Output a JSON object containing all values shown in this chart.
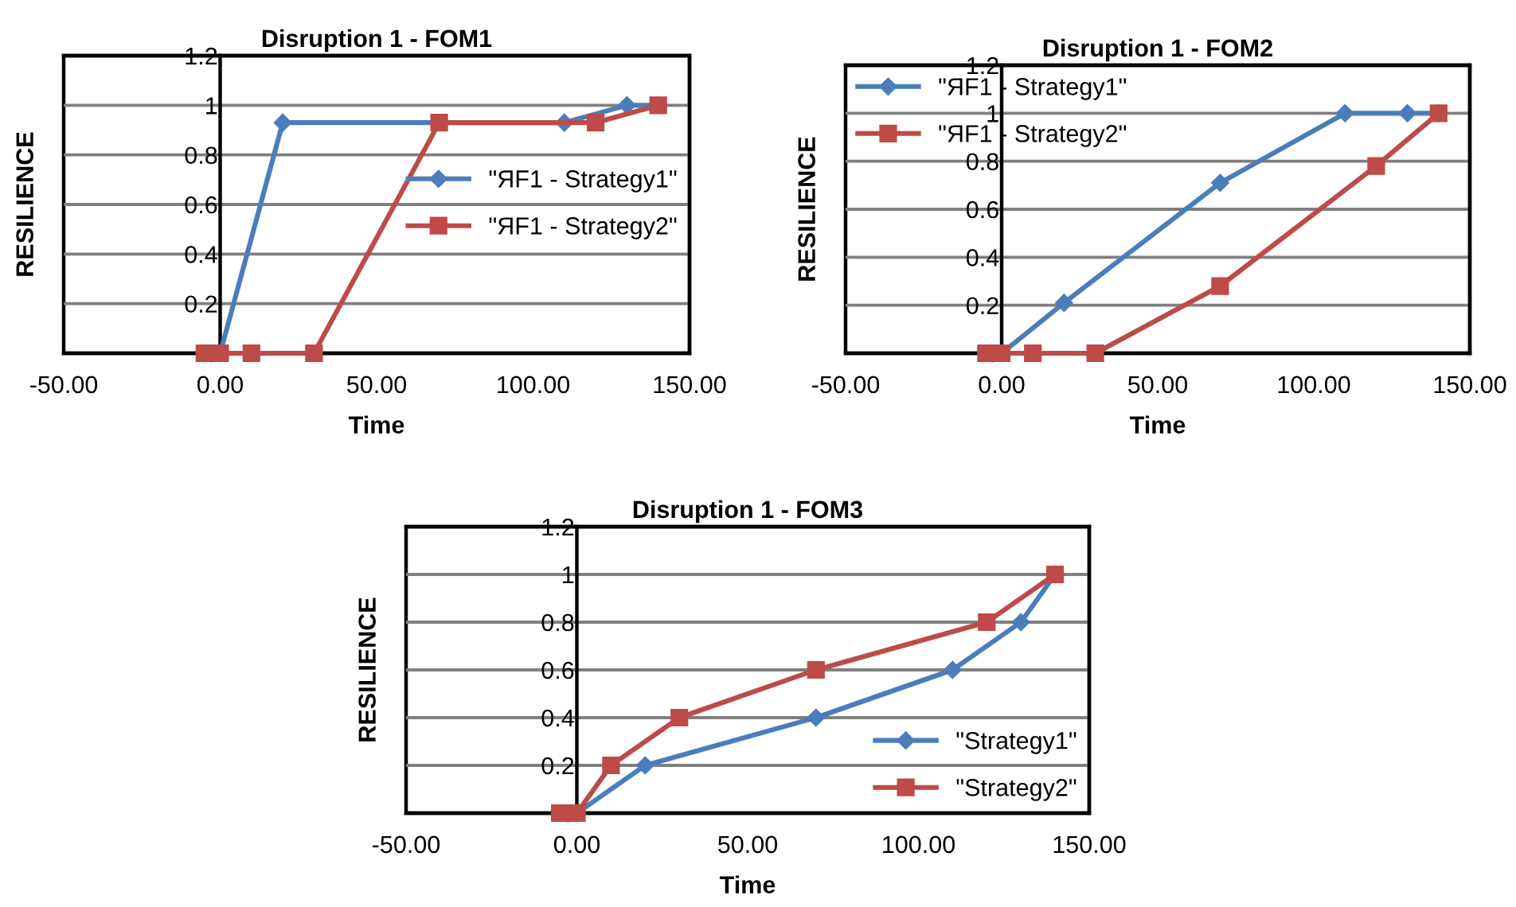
{
  "chart_data": [
    {
      "type": "line",
      "title": "Disruption 1 - FOM1",
      "xlabel": "Time",
      "ylabel": "RESILIENCE",
      "xlim": [
        -50,
        150
      ],
      "xticks": [
        {
          "value": -50,
          "label": "-50.00"
        },
        {
          "value": 0,
          "label": "0.00"
        },
        {
          "value": 50,
          "label": "50.00"
        },
        {
          "value": 100,
          "label": "100.00"
        },
        {
          "value": 150,
          "label": "150.00"
        }
      ],
      "ylim": [
        0,
        1.2
      ],
      "yticks": [
        0,
        0.2,
        0.4,
        0.6,
        0.8,
        1,
        1.2
      ],
      "grid": "y",
      "legend": "right",
      "series": [
        {
          "name": "\"ЯF1 - Strategy1\"",
          "color": "#4a7ebb",
          "marker": "diamond",
          "x": [
            -5,
            0,
            20,
            110,
            130,
            140
          ],
          "values": [
            0,
            0,
            0.93,
            0.93,
            1,
            1
          ]
        },
        {
          "name": "\"ЯF1 - Strategy2\"",
          "color": "#be4b48",
          "marker": "square",
          "x": [
            -5,
            0,
            10,
            30,
            70,
            120,
            140
          ],
          "values": [
            0,
            0,
            0,
            0,
            0.93,
            0.93,
            1
          ]
        }
      ]
    },
    {
      "type": "line",
      "title": "Disruption 1 - FOM2",
      "xlabel": "Time",
      "ylabel": "RESILIENCE",
      "xlim": [
        -50,
        150
      ],
      "xticks": [
        {
          "value": -50,
          "label": "-50.00"
        },
        {
          "value": 0,
          "label": "0.00"
        },
        {
          "value": 50,
          "label": "50.00"
        },
        {
          "value": 100,
          "label": "100.00"
        },
        {
          "value": 150,
          "label": "150.00"
        }
      ],
      "ylim": [
        0,
        1.2
      ],
      "yticks": [
        0,
        0.2,
        0.4,
        0.6,
        0.8,
        1,
        1.2
      ],
      "grid": "y",
      "legend": "top left",
      "series": [
        {
          "name": "\"ЯF1 - Strategy1\"",
          "color": "#4a7ebb",
          "marker": "diamond",
          "x": [
            0,
            20,
            70,
            110,
            130,
            140
          ],
          "values": [
            0,
            0.21,
            0.71,
            1,
            1,
            1
          ]
        },
        {
          "name": "\"ЯF1 - Strategy2\"",
          "color": "#be4b48",
          "marker": "square",
          "x": [
            -5,
            0,
            10,
            30,
            70,
            120,
            140
          ],
          "values": [
            0,
            0,
            0,
            0,
            0.28,
            0.78,
            1
          ]
        }
      ]
    },
    {
      "type": "line",
      "title": "Disruption 1 - FOM3",
      "xlabel": "Time",
      "ylabel": "RESILIENCE",
      "xlim": [
        -50,
        150
      ],
      "xticks": [
        {
          "value": -50,
          "label": "-50.00"
        },
        {
          "value": 0,
          "label": "0.00"
        },
        {
          "value": 50,
          "label": "50.00"
        },
        {
          "value": 100,
          "label": "100.00"
        },
        {
          "value": 150,
          "label": "150.00"
        }
      ],
      "ylim": [
        0,
        1.2
      ],
      "yticks": [
        0,
        0.2,
        0.4,
        0.6,
        0.8,
        1,
        1.2
      ],
      "grid": "y",
      "legend": "bottom right",
      "series": [
        {
          "name": "\"Strategy1\"",
          "color": "#4a7ebb",
          "marker": "diamond",
          "x": [
            0,
            20,
            70,
            110,
            130,
            140
          ],
          "values": [
            0,
            0.2,
            0.4,
            0.6,
            0.8,
            1
          ]
        },
        {
          "name": "\"Strategy2\"",
          "color": "#be4b48",
          "marker": "square",
          "x": [
            -5,
            0,
            10,
            30,
            70,
            120,
            140
          ],
          "values": [
            0,
            0,
            0.2,
            0.4,
            0.6,
            0.8,
            1
          ]
        }
      ]
    }
  ]
}
